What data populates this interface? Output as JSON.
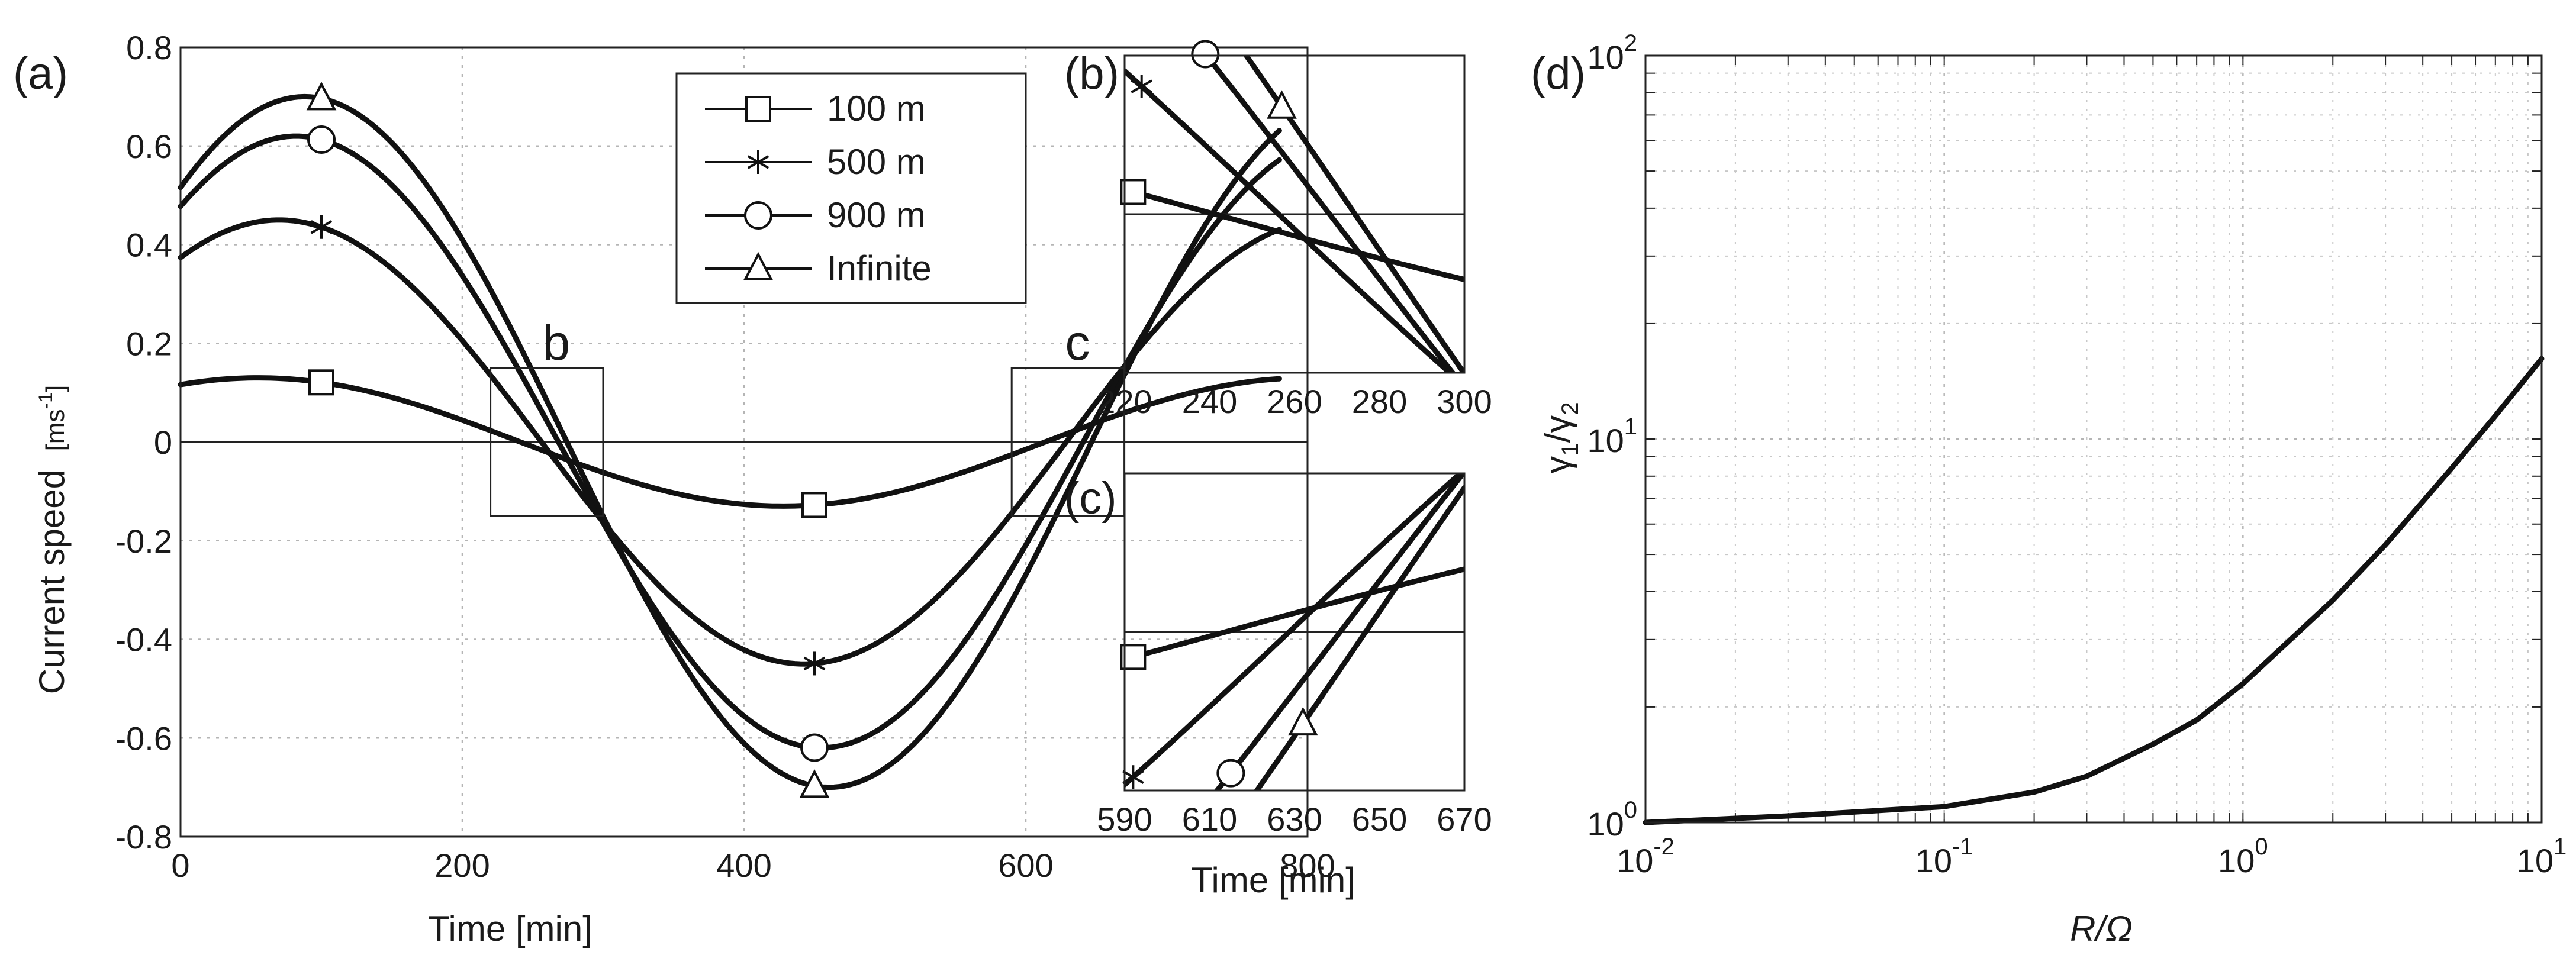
{
  "chart_data": [
    {
      "panel": "(a)",
      "type": "line",
      "xlabel": "Time [min]",
      "ylabel": "Current speed",
      "ylabel_unit": "[ms",
      "ylabel_unit_sup": "-1",
      "ylabel_unit_end": "]",
      "xlim": [
        0,
        800
      ],
      "ylim": [
        -0.8,
        0.8
      ],
      "xticks": [
        "0",
        "200",
        "400",
        "600",
        "800"
      ],
      "yticks": [
        "0.8",
        "0.6",
        "0.4",
        "0.2",
        "0",
        "-0.2",
        "-0.4",
        "-0.6",
        "-0.8"
      ],
      "grid": true,
      "legend_location": "top-right",
      "period_min": 745,
      "t_max": 780,
      "marker_times": [
        100,
        450
      ],
      "series": [
        {
          "name": "100 m",
          "marker": "square",
          "amplitude": 0.13,
          "t_peak": 55,
          "y_start": 0.12,
          "y_at_100": 0.113,
          "y_min": -0.13
        },
        {
          "name": "500 m",
          "marker": "star",
          "amplitude": 0.45,
          "t_peak": 70,
          "y_start": 0.39,
          "y_at_100": 0.43,
          "y_min": -0.45
        },
        {
          "name": "900 m",
          "marker": "circle",
          "amplitude": 0.62,
          "t_peak": 82,
          "y_start": 0.48,
          "y_at_100": 0.61,
          "y_min": -0.62
        },
        {
          "name": "Infinite",
          "marker": "triangle",
          "amplitude": 0.7,
          "t_peak": 88,
          "y_start": 0.5,
          "y_at_100": 0.7,
          "y_min": -0.7
        }
      ],
      "zoom_boxes": [
        {
          "label": "b",
          "x_range": [
            220,
            300
          ],
          "y_range": [
            -0.15,
            0.15
          ]
        },
        {
          "label": "c",
          "x_range": [
            590,
            670
          ],
          "y_range": [
            -0.15,
            0.15
          ]
        }
      ]
    },
    {
      "panel": "(b)",
      "type": "line",
      "xlim": [
        220,
        300
      ],
      "ylim": [
        -0.15,
        0.15
      ],
      "xticks": [
        "220",
        "240",
        "260",
        "280",
        "300"
      ],
      "marker_times": [
        224,
        239,
        257
      ]
    },
    {
      "panel": "(c)",
      "type": "line",
      "xlim": [
        590,
        670
      ],
      "ylim": [
        -0.15,
        0.15
      ],
      "xlabel": "Time [min]",
      "xticks": [
        "590",
        "610",
        "630",
        "650",
        "670"
      ],
      "marker_times": [
        592,
        615,
        632
      ]
    },
    {
      "panel": "(d)",
      "type": "line",
      "scale": "log-log",
      "xlabel": "R/Ω",
      "ylabel_base": "γ",
      "ylabel_sub1": "1",
      "ylabel_sep": "/γ",
      "ylabel_sub2": "2",
      "xlim": [
        0.01,
        10
      ],
      "ylim": [
        1,
        100
      ],
      "xticks": [
        {
          "base": "10",
          "exp": "-2"
        },
        {
          "base": "10",
          "exp": "-1"
        },
        {
          "base": "10",
          "exp": "0"
        },
        {
          "base": "10",
          "exp": "1"
        }
      ],
      "yticks": [
        {
          "base": "10",
          "exp": "0"
        },
        {
          "base": "10",
          "exp": "1"
        },
        {
          "base": "10",
          "exp": "2"
        }
      ],
      "grid": true,
      "series": [
        {
          "name": "γ1/γ2",
          "x": [
            0.01,
            0.03,
            0.1,
            0.2,
            0.3,
            0.5,
            0.7,
            1,
            2,
            3,
            5,
            7,
            10
          ],
          "y": [
            1.0,
            1.04,
            1.1,
            1.2,
            1.32,
            1.6,
            1.85,
            2.3,
            3.8,
            5.3,
            8.4,
            11.5,
            16.2
          ]
        }
      ]
    }
  ]
}
